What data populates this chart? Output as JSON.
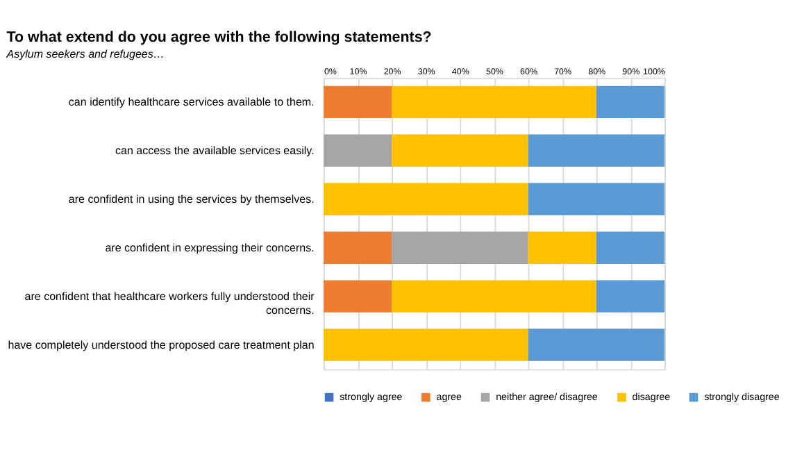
{
  "chart_data": {
    "type": "bar",
    "orientation": "horizontal",
    "stacked": true,
    "title": "To what extend do you agree with the following statements?",
    "subtitle": "Asylum seekers and refugees…",
    "categories": [
      "can identify healthcare services available to them.",
      "can access the available services easily.",
      "are confident in using the services by themselves.",
      "are confident in expressing their concerns.",
      "are confident that healthcare workers fully understood their concerns.",
      "have completely understood the proposed care treatment plan"
    ],
    "series": [
      {
        "name": "strongly agree",
        "color": "#4472c4",
        "values": [
          0,
          0,
          0,
          0,
          0,
          0
        ]
      },
      {
        "name": "agree",
        "color": "#ed7d31",
        "values": [
          20,
          0,
          0,
          20,
          20,
          0
        ]
      },
      {
        "name": "neither agree/ disagree",
        "color": "#a5a5a5",
        "values": [
          0,
          20,
          0,
          40,
          0,
          0
        ]
      },
      {
        "name": "disagree",
        "color": "#ffc000",
        "values": [
          60,
          40,
          60,
          20,
          60,
          60
        ]
      },
      {
        "name": "strongly disagree",
        "color": "#5b9bd5",
        "values": [
          20,
          40,
          40,
          20,
          20,
          40
        ]
      }
    ],
    "xlim": [
      0,
      100
    ],
    "xticks": [
      {
        "value": 0,
        "label": "0%"
      },
      {
        "value": 10,
        "label": "10%"
      },
      {
        "value": 20,
        "label": "20%"
      },
      {
        "value": 30,
        "label": "30%"
      },
      {
        "value": 40,
        "label": "40%"
      },
      {
        "value": 50,
        "label": "50%"
      },
      {
        "value": 60,
        "label": "60%"
      },
      {
        "value": 70,
        "label": "70%"
      },
      {
        "value": 80,
        "label": "80%"
      },
      {
        "value": 90,
        "label": "90%"
      },
      {
        "value": 100,
        "label": "100%"
      }
    ],
    "grid": "x",
    "legend": "bottom"
  }
}
